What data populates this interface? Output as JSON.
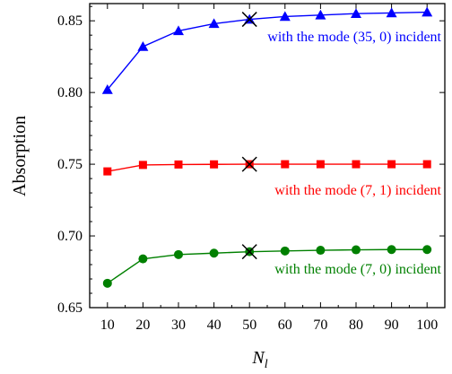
{
  "chart_data": {
    "type": "line",
    "title": "",
    "xlabel": "N",
    "xlabel_subscript": "l",
    "ylabel": "Absorption",
    "xlim": [
      5,
      105
    ],
    "ylim": [
      0.65,
      0.862
    ],
    "x_ticks": [
      10,
      20,
      30,
      40,
      50,
      60,
      70,
      80,
      90,
      100
    ],
    "y_ticks": [
      0.65,
      0.7,
      0.75,
      0.8,
      0.85
    ],
    "y_tick_labels": [
      "0.65",
      "0.70",
      "0.75",
      "0.80",
      "0.85"
    ],
    "grid": false,
    "x": [
      10,
      20,
      30,
      40,
      50,
      60,
      70,
      80,
      90,
      100
    ],
    "series": [
      {
        "annotation": "with the mode (35, 0) incident",
        "color": "#0000ff",
        "marker": "triangle",
        "values": [
          0.802,
          0.832,
          0.843,
          0.848,
          0.851,
          0.853,
          0.854,
          0.855,
          0.8555,
          0.856
        ]
      },
      {
        "annotation": "with the mode (7, 1) incident",
        "color": "#ff0000",
        "marker": "square",
        "values": [
          0.745,
          0.7495,
          0.7498,
          0.7499,
          0.75,
          0.75,
          0.75,
          0.75,
          0.75,
          0.75
        ]
      },
      {
        "annotation": "with the mode (7, 0) incident",
        "color": "#008000",
        "marker": "circle",
        "values": [
          0.667,
          0.684,
          0.687,
          0.688,
          0.689,
          0.6895,
          0.69,
          0.6903,
          0.6905,
          0.6905
        ]
      }
    ],
    "highlight": {
      "x": 50,
      "marker": "x-cross"
    }
  }
}
